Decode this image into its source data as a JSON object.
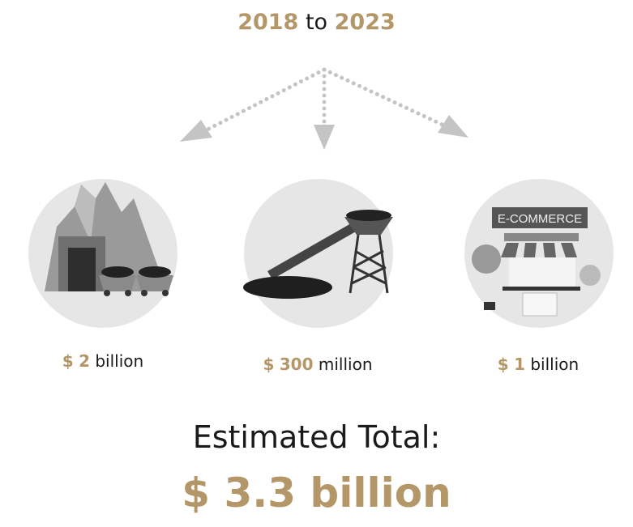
{
  "header": {
    "start_year": "2018",
    "connector": "to",
    "end_year": "2023"
  },
  "colors": {
    "accent": "#b49769",
    "arrow": "#c4c4c4",
    "circle": "#e6e6e6"
  },
  "segments": [
    {
      "icon": "mine-icon",
      "currency": "$",
      "amount": "2",
      "unit": "billion"
    },
    {
      "icon": "conveyor-coal-icon",
      "currency": "$",
      "amount": "300",
      "unit": "million"
    },
    {
      "icon": "ecommerce-store-icon",
      "currency": "$",
      "amount": "1",
      "unit": "billion",
      "sign_text": "E-COMMERCE"
    }
  ],
  "total": {
    "label": "Estimated Total:",
    "value": "$ 3.3 billion"
  }
}
